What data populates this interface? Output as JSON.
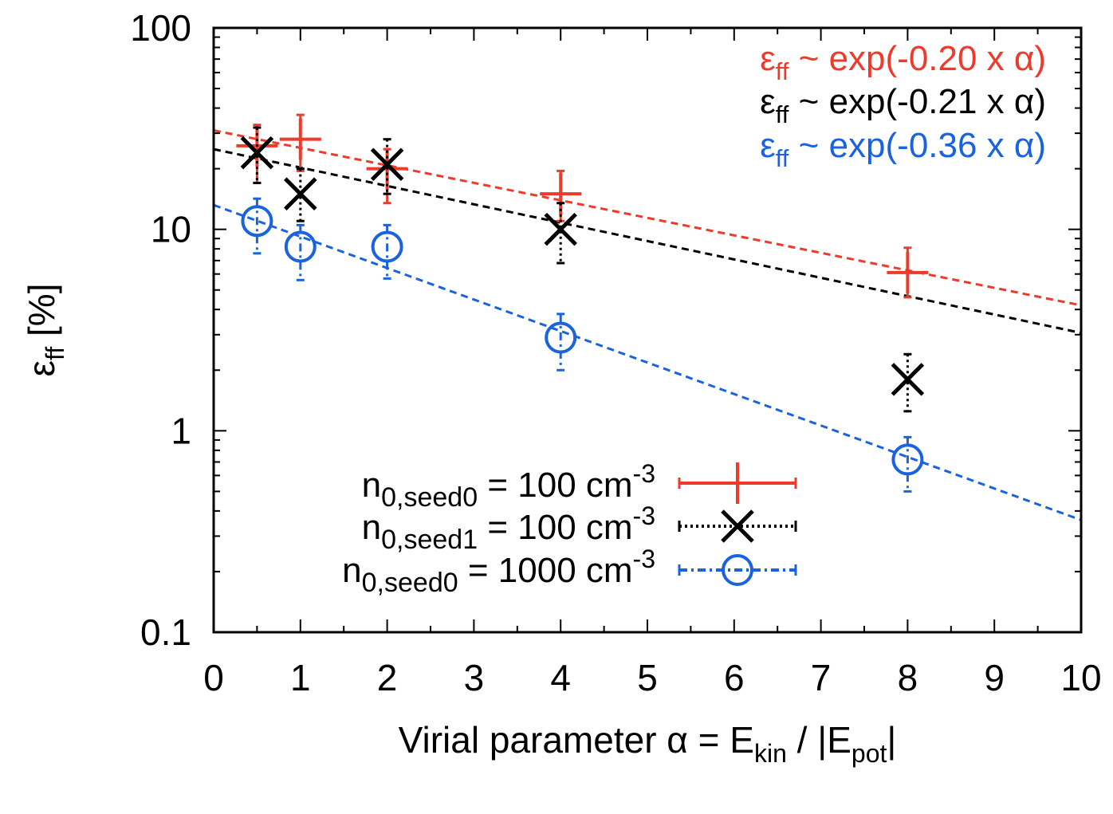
{
  "chart_data": {
    "type": "scatter",
    "y_scale": "log",
    "xlim": [
      0,
      10
    ],
    "ylim": [
      0.1,
      100
    ],
    "x_ticks": [
      "0",
      "1",
      "2",
      "3",
      "4",
      "5",
      "6",
      "7",
      "8",
      "9",
      "10"
    ],
    "y_ticks": [
      "0.1",
      "1",
      "10",
      "100"
    ],
    "xlabel": {
      "main": "Virial parameter α = E",
      "sub1": "kin",
      "mid": " / |E",
      "sub2": "pot",
      "end": "|"
    },
    "ylabel": {
      "main": "ε",
      "sub": "ff",
      "end": " [%]"
    },
    "series": [
      {
        "name": "n0,seed0 = 100 cm-3",
        "legend": {
          "main": "n",
          "sub": "0,seed0",
          "mid": " = 100 cm",
          "sup": "-3"
        },
        "color": "#ee3a2b",
        "marker": "plus",
        "line": "solid",
        "x": [
          0.5,
          1,
          2,
          4,
          8
        ],
        "y": [
          26,
          28,
          20,
          15,
          6.1
        ],
        "y_low": [
          17,
          19.5,
          13.5,
          11,
          4.6
        ],
        "y_high": [
          33,
          37,
          25,
          19.5,
          8.1
        ]
      },
      {
        "name": "n0,seed1 = 100 cm-3",
        "legend": {
          "main": "n",
          "sub": "0,seed1",
          "mid": " = 100 cm",
          "sup": "-3"
        },
        "color": "#000000",
        "marker": "cross",
        "line": "dotted",
        "x": [
          0.5,
          1,
          2,
          4,
          8
        ],
        "y": [
          24,
          15,
          21,
          10,
          1.8
        ],
        "y_low": [
          17,
          11,
          15,
          6.8,
          1.25
        ],
        "y_high": [
          32,
          20,
          28,
          13.5,
          2.4
        ]
      },
      {
        "name": "n0,seed0 = 1000 cm-3",
        "legend": {
          "main": "n",
          "sub": "0,seed0",
          "mid": " = 1000 cm",
          "sup": "-3"
        },
        "color": "#1a63e0",
        "marker": "circle",
        "line": "dashdot",
        "x": [
          0.5,
          1,
          2,
          4,
          8
        ],
        "y": [
          11,
          8.2,
          8.2,
          2.9,
          0.72
        ],
        "y_low": [
          7.6,
          5.6,
          5.7,
          2.0,
          0.5
        ],
        "y_high": [
          14.2,
          10.5,
          10.5,
          3.8,
          0.93
        ]
      }
    ],
    "fits": [
      {
        "color": "#ee3a2b",
        "a": 31,
        "b": -0.2,
        "label": {
          "main": "ε",
          "sub": "ff",
          "rest": " ~ exp(-0.20 x α)"
        }
      },
      {
        "color": "#000000",
        "a": 25,
        "b": -0.21,
        "label": {
          "main": "ε",
          "sub": "ff",
          "rest": " ~ exp(-0.21 x α)"
        }
      },
      {
        "color": "#1a63e0",
        "a": 13.2,
        "b": -0.36,
        "label": {
          "main": "ε",
          "sub": "ff",
          "rest": " ~ exp(-0.36 x α)"
        }
      }
    ]
  }
}
